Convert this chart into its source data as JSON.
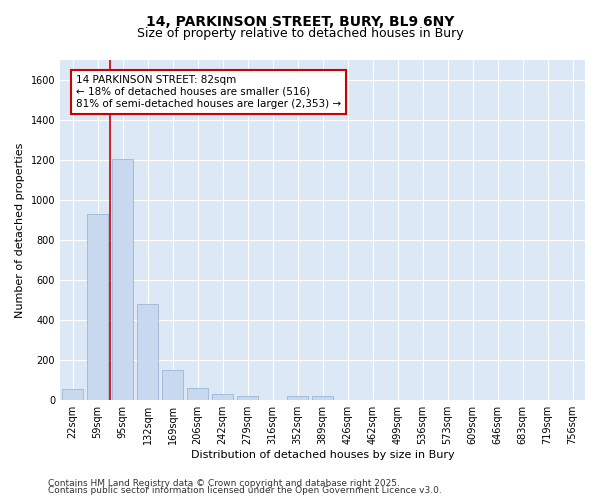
{
  "title_line1": "14, PARKINSON STREET, BURY, BL9 6NY",
  "title_line2": "Size of property relative to detached houses in Bury",
  "xlabel": "Distribution of detached houses by size in Bury",
  "ylabel": "Number of detached properties",
  "categories": [
    "22sqm",
    "59sqm",
    "95sqm",
    "132sqm",
    "169sqm",
    "206sqm",
    "242sqm",
    "279sqm",
    "316sqm",
    "352sqm",
    "389sqm",
    "426sqm",
    "462sqm",
    "499sqm",
    "536sqm",
    "573sqm",
    "609sqm",
    "646sqm",
    "683sqm",
    "719sqm",
    "756sqm"
  ],
  "values": [
    55,
    930,
    1205,
    480,
    150,
    60,
    30,
    20,
    2,
    20,
    20,
    2,
    0,
    0,
    0,
    0,
    0,
    0,
    0,
    0,
    0
  ],
  "bar_color": "#c8d8ee",
  "bar_edge_color": "#9ab8d8",
  "vline_color": "#cc0000",
  "vline_x": 1.5,
  "annotation_text": "14 PARKINSON STREET: 82sqm\n← 18% of detached houses are smaller (516)\n81% of semi-detached houses are larger (2,353) →",
  "annotation_box_facecolor": "#ffffff",
  "annotation_box_edgecolor": "#cc0000",
  "annotation_fontsize": 7.5,
  "footer_line1": "Contains HM Land Registry data © Crown copyright and database right 2025.",
  "footer_line2": "Contains public sector information licensed under the Open Government Licence v3.0.",
  "ylim": [
    0,
    1700
  ],
  "yticks": [
    0,
    200,
    400,
    600,
    800,
    1000,
    1200,
    1400,
    1600
  ],
  "fig_bg_color": "#ffffff",
  "plot_bg_color": "#dce8f5",
  "grid_color": "#ffffff",
  "title_fontsize": 10,
  "subtitle_fontsize": 9,
  "axis_label_fontsize": 8,
  "tick_fontsize": 7,
  "footer_fontsize": 6.5
}
